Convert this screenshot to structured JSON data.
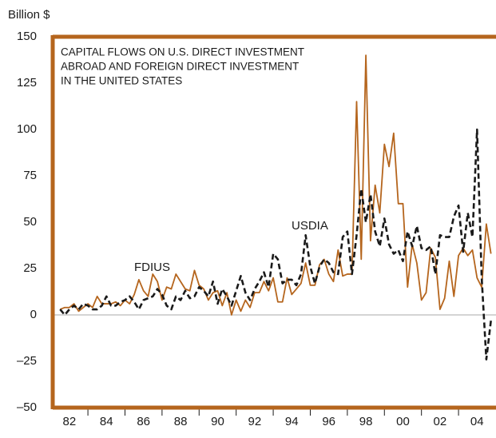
{
  "chart_data": {
    "type": "line",
    "title": [
      "CAPITAL FLOWS ON U.S. DIRECT INVESTMENT",
      "ABROAD AND FOREIGN DIRECT INVESTMENT",
      "IN THE UNITED STATES"
    ],
    "y_label": "Billion $",
    "x": [
      1982,
      1982.25,
      1982.5,
      1982.75,
      1983,
      1983.25,
      1983.5,
      1983.75,
      1984,
      1984.25,
      1984.5,
      1984.75,
      1985,
      1985.25,
      1985.5,
      1985.75,
      1986,
      1986.25,
      1986.5,
      1986.75,
      1987,
      1987.25,
      1987.5,
      1987.75,
      1988,
      1988.25,
      1988.5,
      1988.75,
      1989,
      1989.25,
      1989.5,
      1989.75,
      1990,
      1990.25,
      1990.5,
      1990.75,
      1991,
      1991.25,
      1991.5,
      1991.75,
      1992,
      1992.25,
      1992.5,
      1992.75,
      1993,
      1993.25,
      1993.5,
      1993.75,
      1994,
      1994.25,
      1994.5,
      1994.75,
      1995,
      1995.25,
      1995.5,
      1995.75,
      1996,
      1996.25,
      1996.5,
      1996.75,
      1997,
      1997.25,
      1997.5,
      1997.75,
      1998,
      1998.25,
      1998.5,
      1998.75,
      1999,
      1999.25,
      1999.5,
      1999.75,
      2000,
      2000.25,
      2000.5,
      2000.75,
      2001,
      2001.25,
      2001.5,
      2001.75,
      2002,
      2002.25,
      2002.5,
      2002.75,
      2003,
      2003.25,
      2003.5,
      2003.75,
      2004,
      2004.25,
      2004.5,
      2004.75,
      2005,
      2005.25
    ],
    "series": [
      {
        "name": "USDIA",
        "color": "#1a1a1a",
        "dashed": true,
        "values": [
          3,
          0,
          3,
          5,
          3,
          6,
          5,
          3,
          3,
          5,
          10,
          5,
          5,
          7,
          8,
          10,
          7,
          3,
          8,
          9,
          10,
          14,
          11,
          5,
          3,
          10,
          8,
          13,
          9,
          10,
          15,
          13,
          10,
          18,
          6,
          14,
          10,
          5,
          13,
          21,
          12,
          8,
          14,
          18,
          23,
          15,
          33,
          30,
          17,
          19,
          19,
          16,
          22,
          43,
          26,
          17,
          26,
          30,
          28,
          23,
          22,
          42,
          45,
          22,
          43,
          68,
          50,
          65,
          45,
          37,
          52,
          38,
          33,
          35,
          29,
          45,
          37,
          48,
          36,
          35,
          37,
          22,
          43,
          42,
          42,
          53,
          59,
          34,
          55,
          42,
          100,
          20,
          -24,
          -3
        ]
      },
      {
        "name": "FDIUS",
        "color": "#b5651d",
        "dashed": false,
        "values": [
          3,
          4,
          4,
          6,
          2,
          4,
          6,
          4,
          10,
          6,
          6,
          6,
          7,
          5,
          8,
          6,
          11,
          19,
          13,
          10,
          22,
          18,
          8,
          15,
          14,
          22,
          18,
          14,
          13,
          24,
          16,
          14,
          8,
          12,
          13,
          5,
          12,
          0,
          8,
          2,
          8,
          4,
          12,
          12,
          18,
          13,
          20,
          7,
          7,
          20,
          11,
          14,
          17,
          28,
          16,
          16,
          27,
          30,
          22,
          18,
          35,
          21,
          22,
          22,
          115,
          30,
          140,
          40,
          70,
          55,
          92,
          80,
          98,
          60,
          60,
          15,
          38,
          28,
          8,
          12,
          36,
          31,
          3,
          9,
          29,
          10,
          32,
          36,
          32,
          35,
          20,
          15,
          49,
          33
        ]
      }
    ],
    "xlim": [
      1981.6,
      2005.6
    ],
    "xticks": [
      {
        "value": 1982.5,
        "label": "82"
      },
      {
        "value": 1984.5,
        "label": "84"
      },
      {
        "value": 1986.5,
        "label": "86"
      },
      {
        "value": 1988.5,
        "label": "88"
      },
      {
        "value": 1990.5,
        "label": "90"
      },
      {
        "value": 1992.5,
        "label": "92"
      },
      {
        "value": 1994.5,
        "label": "94"
      },
      {
        "value": 1996.5,
        "label": "96"
      },
      {
        "value": 1998.5,
        "label": "98"
      },
      {
        "value": 2000.5,
        "label": "00"
      },
      {
        "value": 2002.5,
        "label": "02"
      },
      {
        "value": 2004.5,
        "label": "04"
      }
    ],
    "xminor_ticks": [
      1983.5,
      1985.5,
      1987.5,
      1989.5,
      1991.5,
      1993.5,
      1995.5,
      1997.5,
      1999.5,
      2001.5,
      2003.5
    ],
    "ylim": [
      -50,
      150
    ],
    "yticks": [
      {
        "value": -50,
        "label": "–50"
      },
      {
        "value": -25,
        "label": "–25"
      },
      0,
      25,
      50,
      75,
      100,
      125,
      150
    ],
    "zero_line": true,
    "frame_color": "#b5651d"
  }
}
